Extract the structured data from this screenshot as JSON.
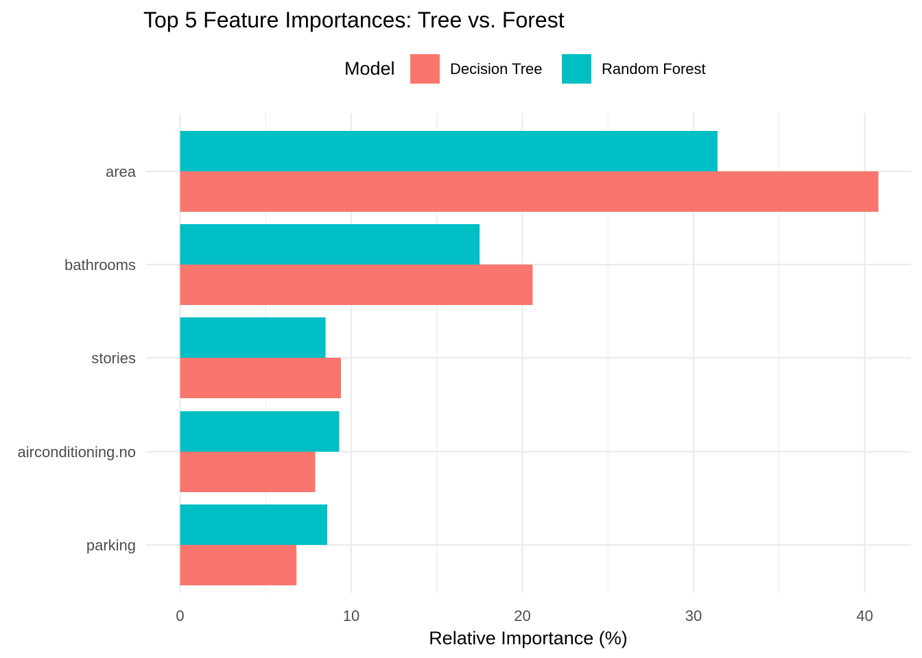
{
  "chart_data": {
    "type": "bar",
    "orientation": "horizontal",
    "title": "Top 5 Feature Importances: Tree vs. Forest",
    "xlabel": "Relative Importance (%)",
    "ylabel": "",
    "categories": [
      "area",
      "bathrooms",
      "stories",
      "airconditioning.no",
      "parking"
    ],
    "series": [
      {
        "name": "Decision Tree",
        "color": "#F8766D",
        "values": [
          40.8,
          20.6,
          9.4,
          7.9,
          6.8
        ]
      },
      {
        "name": "Random Forest",
        "color": "#00BFC4",
        "values": [
          31.4,
          17.5,
          8.5,
          9.3,
          8.6
        ]
      }
    ],
    "xlim": [
      0,
      41
    ],
    "xticks": [
      0,
      10,
      20,
      30,
      40
    ],
    "grid": true,
    "legend": {
      "title": "Model",
      "position": "top"
    }
  }
}
